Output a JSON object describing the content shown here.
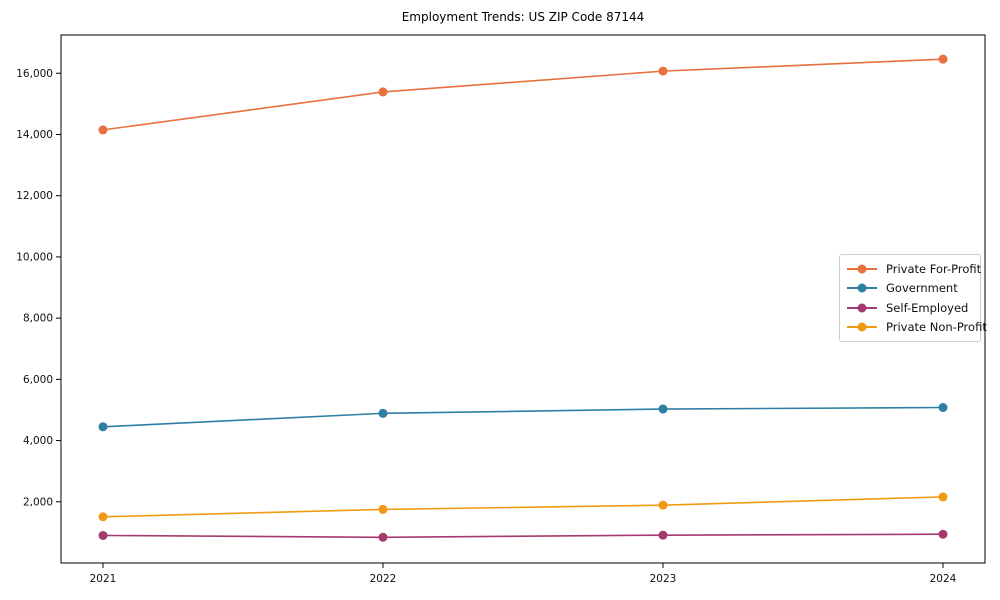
{
  "title": "Employment Trends: US ZIP Code 87144",
  "chart_data": {
    "type": "line",
    "title": "Employment Trends: US ZIP Code 87144",
    "xlabel": "",
    "ylabel": "",
    "x": [
      2021,
      2022,
      2023,
      2024
    ],
    "xtick_labels": [
      "2021",
      "2022",
      "2023",
      "2024"
    ],
    "series": [
      {
        "name": "Private For-Profit",
        "color": "#E7703F",
        "values": [
          14150,
          15390,
          16070,
          16460
        ]
      },
      {
        "name": "Government",
        "color": "#2E7FA3",
        "values": [
          4450,
          4890,
          5030,
          5080
        ]
      },
      {
        "name": "Self-Employed",
        "color": "#A53A70",
        "values": [
          900,
          840,
          910,
          940
        ]
      },
      {
        "name": "Private Non-Profit",
        "color": "#F09A14",
        "values": [
          1510,
          1750,
          1890,
          2160
        ]
      }
    ],
    "ylim": [
      0,
      17250
    ],
    "xlim": [
      2020.85,
      2024.15
    ],
    "yticks": [
      2000,
      4000,
      6000,
      8000,
      10000,
      12000,
      14000,
      16000
    ],
    "ytick_labels": [
      "2,000",
      "4,000",
      "6,000",
      "8,000",
      "10,000",
      "12,000",
      "14,000",
      "16,000"
    ],
    "grid": false,
    "legend_position": "center-right",
    "marker": "circle",
    "frame_color": "#000000",
    "tick_label_color": "#111111"
  }
}
